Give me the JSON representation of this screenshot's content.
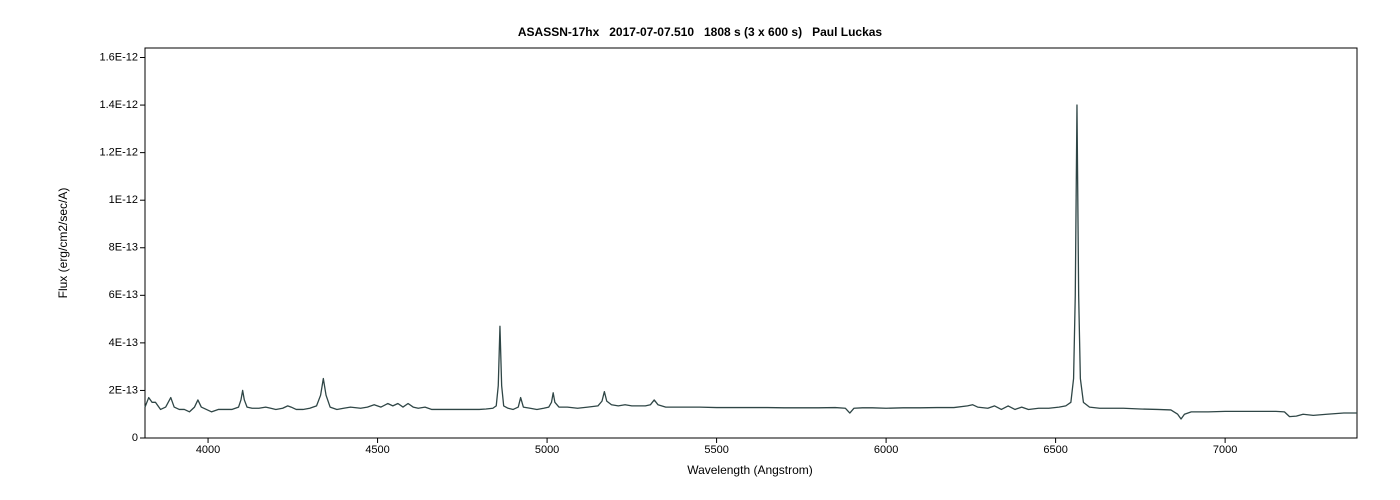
{
  "chart_data": {
    "type": "line",
    "title": "ASASSN-17hx   2017-07-07.510   1808 s (3 x 600 s)   Paul Luckas",
    "x_label": "Wavelength (Angstrom)",
    "y_label": "Flux (erg/cm2/sec/A)",
    "color": "#2f4646",
    "xlim": [
      3814,
      7389
    ],
    "ylim": [
      0,
      1.64e-12
    ],
    "xticks": [
      4000,
      4500,
      5000,
      5500,
      6000,
      6500,
      7000
    ],
    "yticks": [
      0,
      {
        "value": 2e-13,
        "label": "2E-13"
      },
      {
        "value": 4e-13,
        "label": "4E-13"
      },
      {
        "value": 6e-13,
        "label": "6E-13"
      },
      {
        "value": 8e-13,
        "label": "8E-13"
      },
      {
        "value": 1e-12,
        "label": "1E-12"
      },
      {
        "value": 1.2e-12,
        "label": "1.2E-12"
      },
      {
        "value": 1.4e-12,
        "label": "1.4E-12"
      },
      {
        "value": 1.6e-12,
        "label": "1.6E-12"
      }
    ],
    "grid": false,
    "x": [
      3814,
      3825,
      3835,
      3845,
      3860,
      3875,
      3890,
      3900,
      3915,
      3930,
      3945,
      3960,
      3970,
      3980,
      3995,
      4010,
      4030,
      4050,
      4070,
      4090,
      4097,
      4102,
      4107,
      4115,
      4130,
      4150,
      4170,
      4185,
      4200,
      4220,
      4235,
      4245,
      4260,
      4280,
      4300,
      4320,
      4332,
      4340,
      4348,
      4360,
      4380,
      4400,
      4420,
      4450,
      4470,
      4490,
      4510,
      4530,
      4545,
      4560,
      4575,
      4590,
      4605,
      4620,
      4640,
      4660,
      4680,
      4700,
      4720,
      4740,
      4760,
      4780,
      4800,
      4820,
      4840,
      4850,
      4856,
      4861,
      4866,
      4872,
      4885,
      4900,
      4915,
      4922,
      4930,
      4950,
      4970,
      4990,
      5005,
      5013,
      5018,
      5023,
      5035,
      5060,
      5090,
      5120,
      5150,
      5162,
      5169,
      5176,
      5190,
      5210,
      5230,
      5250,
      5270,
      5290,
      5305,
      5316,
      5327,
      5350,
      5400,
      5450,
      5500,
      5550,
      5600,
      5650,
      5700,
      5750,
      5800,
      5850,
      5880,
      5893,
      5905,
      5930,
      5960,
      6000,
      6050,
      6100,
      6150,
      6200,
      6240,
      6255,
      6270,
      6300,
      6320,
      6340,
      6360,
      6380,
      6400,
      6420,
      6450,
      6480,
      6510,
      6530,
      6545,
      6553,
      6558,
      6563,
      6568,
      6573,
      6582,
      6600,
      6630,
      6660,
      6700,
      6750,
      6800,
      6840,
      6860,
      6870,
      6880,
      6900,
      6950,
      7000,
      7050,
      7100,
      7150,
      7175,
      7190,
      7210,
      7230,
      7260,
      7300,
      7350,
      7389
    ],
    "values": [
      1.3e-13,
      1.7e-13,
      1.5e-13,
      1.5e-13,
      1.2e-13,
      1.3e-13,
      1.7e-13,
      1.3e-13,
      1.2e-13,
      1.2e-13,
      1.1e-13,
      1.3e-13,
      1.6e-13,
      1.3e-13,
      1.2e-13,
      1.1e-13,
      1.2e-13,
      1.2e-13,
      1.2e-13,
      1.3e-13,
      1.6e-13,
      2e-13,
      1.6e-13,
      1.3e-13,
      1.25e-13,
      1.25e-13,
      1.3e-13,
      1.25e-13,
      1.2e-13,
      1.25e-13,
      1.35e-13,
      1.3e-13,
      1.2e-13,
      1.2e-13,
      1.25e-13,
      1.35e-13,
      1.8e-13,
      2.5e-13,
      1.8e-13,
      1.3e-13,
      1.2e-13,
      1.25e-13,
      1.3e-13,
      1.25e-13,
      1.3e-13,
      1.4e-13,
      1.3e-13,
      1.45e-13,
      1.35e-13,
      1.45e-13,
      1.3e-13,
      1.45e-13,
      1.3e-13,
      1.25e-13,
      1.3e-13,
      1.2e-13,
      1.2e-13,
      1.2e-13,
      1.2e-13,
      1.2e-13,
      1.2e-13,
      1.2e-13,
      1.2e-13,
      1.22e-13,
      1.25e-13,
      1.35e-13,
      2.2e-13,
      4.7e-13,
      2.2e-13,
      1.35e-13,
      1.25e-13,
      1.2e-13,
      1.3e-13,
      1.7e-13,
      1.3e-13,
      1.25e-13,
      1.2e-13,
      1.25e-13,
      1.3e-13,
      1.5e-13,
      1.9e-13,
      1.5e-13,
      1.3e-13,
      1.3e-13,
      1.25e-13,
      1.3e-13,
      1.35e-13,
      1.55e-13,
      1.95e-13,
      1.55e-13,
      1.4e-13,
      1.35e-13,
      1.4e-13,
      1.35e-13,
      1.35e-13,
      1.35e-13,
      1.4e-13,
      1.6e-13,
      1.4e-13,
      1.3e-13,
      1.3e-13,
      1.3e-13,
      1.28e-13,
      1.28e-13,
      1.28e-13,
      1.28e-13,
      1.27e-13,
      1.27e-13,
      1.27e-13,
      1.28e-13,
      1.25e-13,
      1.05e-13,
      1.25e-13,
      1.27e-13,
      1.27e-13,
      1.25e-13,
      1.27e-13,
      1.27e-13,
      1.28e-13,
      1.28e-13,
      1.35e-13,
      1.4e-13,
      1.3e-13,
      1.25e-13,
      1.35e-13,
      1.2e-13,
      1.35e-13,
      1.2e-13,
      1.3e-13,
      1.2e-13,
      1.25e-13,
      1.25e-13,
      1.3e-13,
      1.35e-13,
      1.5e-13,
      2.5e-13,
      6e-13,
      1.4e-12,
      6e-13,
      2.5e-13,
      1.5e-13,
      1.3e-13,
      1.25e-13,
      1.25e-13,
      1.25e-13,
      1.22e-13,
      1.2e-13,
      1.18e-13,
      1e-13,
      8e-14,
      1e-13,
      1.1e-13,
      1.1e-13,
      1.12e-13,
      1.12e-13,
      1.12e-13,
      1.12e-13,
      1.1e-13,
      9e-14,
      9.2e-14,
      1e-13,
      9.5e-14,
      1e-13,
      1.05e-13,
      1.05e-13
    ]
  }
}
